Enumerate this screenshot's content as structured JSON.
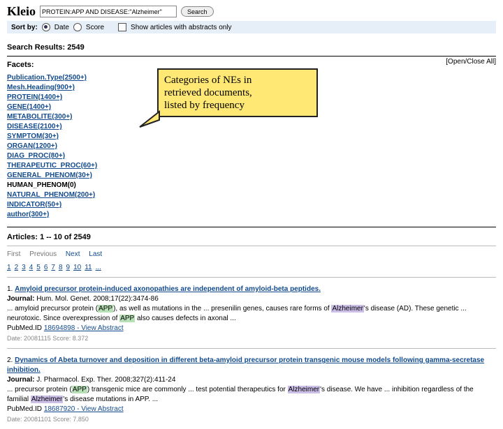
{
  "header": {
    "logo": "Kleio",
    "query": "PROTEIN:APP AND DISEASE:\"Alzheimer\"",
    "search_btn": "Search"
  },
  "sort": {
    "label": "Sort by:",
    "opt_date": "Date",
    "opt_score": "Score",
    "abstracts": "Show articles with abstracts only"
  },
  "results": {
    "label": "Search Results:",
    "count": "2549"
  },
  "facets": {
    "title": "Facets:",
    "open_close": "[Open/Close All]",
    "items": [
      {
        "label": "Publication.Type(2500+)",
        "link": true
      },
      {
        "label": "Mesh.Heading(900+)",
        "link": true
      },
      {
        "label": "PROTEIN(1400+)",
        "link": true
      },
      {
        "label": "GENE(1400+)",
        "link": true
      },
      {
        "label": "METABOLITE(300+)",
        "link": true
      },
      {
        "label": "DISEASE(2100+)",
        "link": true
      },
      {
        "label": "SYMPTOM(30+)",
        "link": true
      },
      {
        "label": "ORGAN(1200+)",
        "link": true
      },
      {
        "label": "DIAG_PROC(80+)",
        "link": true
      },
      {
        "label": "THERAPEUTIC_PROC(60+)",
        "link": true
      },
      {
        "label": "GENERAL_PHENOM(30+)",
        "link": true
      },
      {
        "label": "HUMAN_PHENOM(0)",
        "link": false
      },
      {
        "label": "NATURAL_PHENOM(200+)",
        "link": true
      },
      {
        "label": "INDICATOR(50+)",
        "link": true
      },
      {
        "label": "author(300+)",
        "link": true
      }
    ]
  },
  "callout": {
    "l1": "Categories of NEs in",
    "l2": "retrieved documents,",
    "l3": "listed by frequency"
  },
  "articles": {
    "header": "Articles: 1 -- 10 of 2549",
    "pager": {
      "first": "First",
      "prev": "Previous",
      "next": "Next",
      "last": "Last"
    },
    "pages": [
      "1",
      "2",
      "3",
      "4",
      "5",
      "6",
      "7",
      "8",
      "9",
      "10",
      "11",
      "..."
    ],
    "a1": {
      "num": "1.",
      "title": "Amyloid precursor protein-induced axonopathies are independent of amyloid-beta peptides.",
      "journal_lbl": "Journal:",
      "journal": "Hum. Mol. Genet. 2008;17(22):3474-86",
      "snip_pre": "... amyloid precursor protein (",
      "snip_mid1": "), as well as mutations in the ... presenilin genes, causes rare forms of ",
      "snip_mid2": "'s disease (AD). These genetic ... neurotoxic. Since overexpression of ",
      "snip_post": " also causes defects in axonal ...",
      "pm_lbl": "PubMed.ID ",
      "pmid": "18694898",
      "va": " - View Abstract",
      "meta": "Date: 20081115   Score: 8.372"
    },
    "a2": {
      "num": "2.",
      "title": "Dynamics of Abeta turnover and deposition in different beta-amyloid precursor protein transgenic mouse models following gamma-secretase inhibition.",
      "journal_lbl": "Journal:",
      "journal": "J. Pharmacol. Exp. Ther. 2008;327(2):411-24",
      "snip_pre": "... precursor protein (",
      "snip_mid1": ") transgenic mice are commonly ... test potential therapeutics for ",
      "snip_mid2": "'s disease. We have ... inhibition regardless of the familial ",
      "snip_post": "'s disease mutations in APP. ...",
      "pm_lbl": "PubMed.ID ",
      "pmid": "18687920",
      "va": " - View Abstract",
      "meta": "Date: 20081101   Score: 7.850"
    },
    "hl": {
      "app": "APP",
      "alz": "Alzheimer"
    }
  }
}
